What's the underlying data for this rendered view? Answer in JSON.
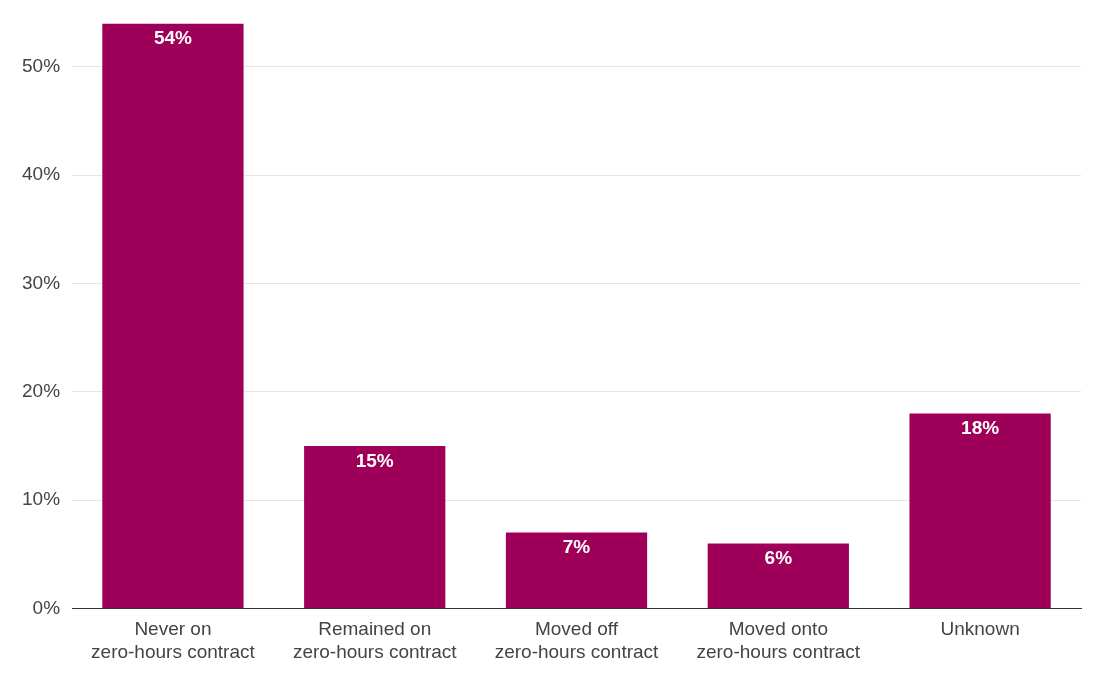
{
  "chart_data": {
    "type": "bar",
    "categories": [
      "Never on zero-hours contract",
      "Remained on zero-hours contract",
      "Moved off zero-hours contract",
      "Moved onto zero-hours contract",
      "Unknown"
    ],
    "values": [
      54,
      15,
      7,
      6,
      18
    ],
    "value_labels": [
      "54%",
      "15%",
      "7%",
      "6%",
      "18%"
    ],
    "color": "#9e0059",
    "ylim": [
      0,
      54
    ],
    "yticks": [
      {
        "value": 0,
        "label": "0%"
      },
      {
        "value": 10,
        "label": "10%"
      },
      {
        "value": 20,
        "label": "20%"
      },
      {
        "value": 30,
        "label": "30%"
      },
      {
        "value": 40,
        "label": "40%"
      },
      {
        "value": 50,
        "label": "50%"
      }
    ],
    "grid": "y",
    "legend": false
  }
}
